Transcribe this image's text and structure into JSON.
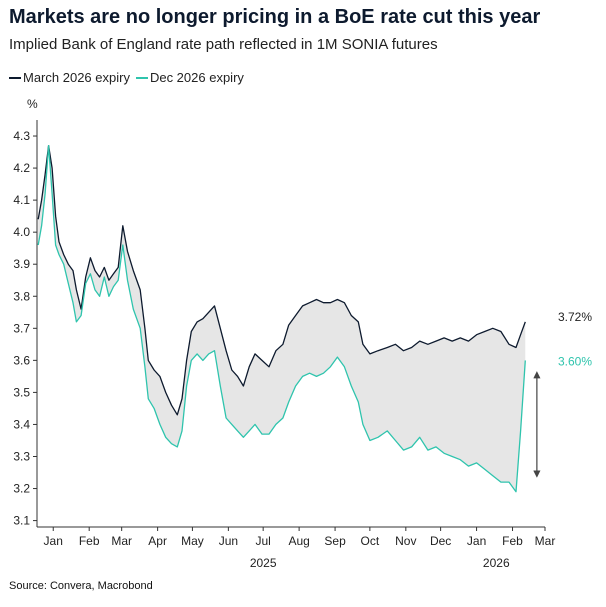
{
  "chart_data": {
    "type": "line",
    "title": "Markets are no longer pricing in a BoE rate cut this year",
    "subtitle": "Implied Bank of England rate path reflected in 1M SONIA futures",
    "ylabel": "%",
    "ylim": [
      3.08,
      4.35
    ],
    "yticks": [
      3.1,
      3.2,
      3.3,
      3.4,
      3.5,
      3.6,
      3.7,
      3.8,
      3.9,
      4.0,
      4.1,
      4.2,
      4.3
    ],
    "xlim": [
      "2025-01-01",
      "2026-03-15"
    ],
    "x_ticks": [
      {
        "label": "Jan",
        "date": "2025-01-15"
      },
      {
        "label": "Feb",
        "date": "2025-02-15"
      },
      {
        "label": "Mar",
        "date": "2025-03-15"
      },
      {
        "label": "Apr",
        "date": "2025-04-15"
      },
      {
        "label": "May",
        "date": "2025-05-15"
      },
      {
        "label": "Jun",
        "date": "2025-06-15"
      },
      {
        "label": "Jul",
        "date": "2025-07-15"
      },
      {
        "label": "Aug",
        "date": "2025-08-15"
      },
      {
        "label": "Sep",
        "date": "2025-09-15"
      },
      {
        "label": "Oct",
        "date": "2025-10-15"
      },
      {
        "label": "Nov",
        "date": "2025-11-15"
      },
      {
        "label": "Dec",
        "date": "2025-12-15"
      },
      {
        "label": "Jan",
        "date": "2026-01-15"
      },
      {
        "label": "Feb",
        "date": "2026-02-15"
      },
      {
        "label": "Mar",
        "date": "2026-03-15"
      }
    ],
    "year_labels": [
      {
        "label": "2025",
        "date": "2025-07-15"
      },
      {
        "label": "2026",
        "date": "2026-02-01"
      }
    ],
    "legend_position": "top-left",
    "grid": false,
    "shaded_gap_between_series": true,
    "series": [
      {
        "name": "March 2026 expiry",
        "color": "#0d1a2e",
        "end_label": "3.72%",
        "points": [
          [
            "2025-01-02",
            4.04
          ],
          [
            "2025-01-05",
            4.1
          ],
          [
            "2025-01-08",
            4.18
          ],
          [
            "2025-01-11",
            4.27
          ],
          [
            "2025-01-14",
            4.2
          ],
          [
            "2025-01-17",
            4.05
          ],
          [
            "2025-01-20",
            3.97
          ],
          [
            "2025-01-24",
            3.93
          ],
          [
            "2025-01-28",
            3.9
          ],
          [
            "2025-02-01",
            3.88
          ],
          [
            "2025-02-04",
            3.82
          ],
          [
            "2025-02-08",
            3.76
          ],
          [
            "2025-02-12",
            3.86
          ],
          [
            "2025-02-16",
            3.92
          ],
          [
            "2025-02-20",
            3.88
          ],
          [
            "2025-02-24",
            3.86
          ],
          [
            "2025-02-28",
            3.89
          ],
          [
            "2025-03-04",
            3.85
          ],
          [
            "2025-03-08",
            3.87
          ],
          [
            "2025-03-12",
            3.89
          ],
          [
            "2025-03-16",
            4.02
          ],
          [
            "2025-03-20",
            3.94
          ],
          [
            "2025-03-25",
            3.88
          ],
          [
            "2025-03-31",
            3.82
          ],
          [
            "2025-04-04",
            3.7
          ],
          [
            "2025-04-07",
            3.6
          ],
          [
            "2025-04-12",
            3.57
          ],
          [
            "2025-04-17",
            3.55
          ],
          [
            "2025-04-22",
            3.5
          ],
          [
            "2025-04-27",
            3.46
          ],
          [
            "2025-05-02",
            3.43
          ],
          [
            "2025-05-06",
            3.48
          ],
          [
            "2025-05-10",
            3.6
          ],
          [
            "2025-05-14",
            3.69
          ],
          [
            "2025-05-19",
            3.72
          ],
          [
            "2025-05-24",
            3.73
          ],
          [
            "2025-05-29",
            3.75
          ],
          [
            "2025-06-03",
            3.77
          ],
          [
            "2025-06-08",
            3.7
          ],
          [
            "2025-06-13",
            3.63
          ],
          [
            "2025-06-18",
            3.57
          ],
          [
            "2025-06-23",
            3.55
          ],
          [
            "2025-06-28",
            3.52
          ],
          [
            "2025-07-03",
            3.58
          ],
          [
            "2025-07-08",
            3.62
          ],
          [
            "2025-07-14",
            3.6
          ],
          [
            "2025-07-20",
            3.58
          ],
          [
            "2025-07-26",
            3.63
          ],
          [
            "2025-08-01",
            3.65
          ],
          [
            "2025-08-06",
            3.71
          ],
          [
            "2025-08-12",
            3.74
          ],
          [
            "2025-08-18",
            3.77
          ],
          [
            "2025-08-24",
            3.78
          ],
          [
            "2025-08-30",
            3.79
          ],
          [
            "2025-09-05",
            3.78
          ],
          [
            "2025-09-11",
            3.78
          ],
          [
            "2025-09-17",
            3.79
          ],
          [
            "2025-09-23",
            3.78
          ],
          [
            "2025-09-29",
            3.74
          ],
          [
            "2025-10-05",
            3.72
          ],
          [
            "2025-10-09",
            3.65
          ],
          [
            "2025-10-15",
            3.62
          ],
          [
            "2025-10-22",
            3.63
          ],
          [
            "2025-10-30",
            3.64
          ],
          [
            "2025-11-06",
            3.65
          ],
          [
            "2025-11-13",
            3.63
          ],
          [
            "2025-11-20",
            3.64
          ],
          [
            "2025-11-27",
            3.66
          ],
          [
            "2025-12-04",
            3.65
          ],
          [
            "2025-12-11",
            3.66
          ],
          [
            "2025-12-18",
            3.67
          ],
          [
            "2025-12-25",
            3.66
          ],
          [
            "2026-01-01",
            3.67
          ],
          [
            "2026-01-08",
            3.66
          ],
          [
            "2026-01-15",
            3.68
          ],
          [
            "2026-01-22",
            3.69
          ],
          [
            "2026-01-29",
            3.7
          ],
          [
            "2026-02-05",
            3.69
          ],
          [
            "2026-02-12",
            3.65
          ],
          [
            "2026-02-18",
            3.64
          ],
          [
            "2026-02-22",
            3.68
          ],
          [
            "2026-02-26",
            3.72
          ]
        ]
      },
      {
        "name": "Dec 2026 expiry",
        "color": "#2fc4ad",
        "end_label": "3.60%",
        "points": [
          [
            "2025-01-02",
            3.96
          ],
          [
            "2025-01-05",
            4.02
          ],
          [
            "2025-01-08",
            4.12
          ],
          [
            "2025-01-11",
            4.27
          ],
          [
            "2025-01-14",
            4.12
          ],
          [
            "2025-01-17",
            3.96
          ],
          [
            "2025-01-20",
            3.93
          ],
          [
            "2025-01-24",
            3.9
          ],
          [
            "2025-01-28",
            3.84
          ],
          [
            "2025-02-01",
            3.78
          ],
          [
            "2025-02-04",
            3.72
          ],
          [
            "2025-02-08",
            3.74
          ],
          [
            "2025-02-12",
            3.84
          ],
          [
            "2025-02-16",
            3.87
          ],
          [
            "2025-02-20",
            3.82
          ],
          [
            "2025-02-24",
            3.8
          ],
          [
            "2025-02-28",
            3.86
          ],
          [
            "2025-03-04",
            3.8
          ],
          [
            "2025-03-08",
            3.83
          ],
          [
            "2025-03-12",
            3.85
          ],
          [
            "2025-03-16",
            3.96
          ],
          [
            "2025-03-20",
            3.85
          ],
          [
            "2025-03-25",
            3.76
          ],
          [
            "2025-03-31",
            3.7
          ],
          [
            "2025-04-04",
            3.58
          ],
          [
            "2025-04-07",
            3.48
          ],
          [
            "2025-04-12",
            3.45
          ],
          [
            "2025-04-17",
            3.4
          ],
          [
            "2025-04-22",
            3.36
          ],
          [
            "2025-04-27",
            3.34
          ],
          [
            "2025-05-02",
            3.33
          ],
          [
            "2025-05-06",
            3.38
          ],
          [
            "2025-05-10",
            3.52
          ],
          [
            "2025-05-14",
            3.6
          ],
          [
            "2025-05-19",
            3.62
          ],
          [
            "2025-05-24",
            3.6
          ],
          [
            "2025-05-29",
            3.62
          ],
          [
            "2025-06-03",
            3.63
          ],
          [
            "2025-06-08",
            3.52
          ],
          [
            "2025-06-13",
            3.42
          ],
          [
            "2025-06-18",
            3.4
          ],
          [
            "2025-06-23",
            3.38
          ],
          [
            "2025-06-28",
            3.36
          ],
          [
            "2025-07-03",
            3.38
          ],
          [
            "2025-07-08",
            3.4
          ],
          [
            "2025-07-14",
            3.37
          ],
          [
            "2025-07-20",
            3.37
          ],
          [
            "2025-07-26",
            3.4
          ],
          [
            "2025-08-01",
            3.42
          ],
          [
            "2025-08-06",
            3.47
          ],
          [
            "2025-08-12",
            3.52
          ],
          [
            "2025-08-18",
            3.55
          ],
          [
            "2025-08-24",
            3.56
          ],
          [
            "2025-08-30",
            3.55
          ],
          [
            "2025-09-05",
            3.56
          ],
          [
            "2025-09-11",
            3.58
          ],
          [
            "2025-09-17",
            3.61
          ],
          [
            "2025-09-23",
            3.58
          ],
          [
            "2025-09-29",
            3.52
          ],
          [
            "2025-10-05",
            3.47
          ],
          [
            "2025-10-09",
            3.4
          ],
          [
            "2025-10-15",
            3.35
          ],
          [
            "2025-10-22",
            3.36
          ],
          [
            "2025-10-30",
            3.38
          ],
          [
            "2025-11-06",
            3.35
          ],
          [
            "2025-11-13",
            3.32
          ],
          [
            "2025-11-20",
            3.33
          ],
          [
            "2025-11-27",
            3.36
          ],
          [
            "2025-12-04",
            3.32
          ],
          [
            "2025-12-11",
            3.33
          ],
          [
            "2025-12-18",
            3.31
          ],
          [
            "2025-12-25",
            3.3
          ],
          [
            "2026-01-01",
            3.29
          ],
          [
            "2026-01-08",
            3.27
          ],
          [
            "2026-01-15",
            3.28
          ],
          [
            "2026-01-22",
            3.26
          ],
          [
            "2026-01-29",
            3.24
          ],
          [
            "2026-02-05",
            3.22
          ],
          [
            "2026-02-12",
            3.22
          ],
          [
            "2026-02-18",
            3.19
          ],
          [
            "2026-02-22",
            3.38
          ],
          [
            "2026-02-26",
            3.6
          ]
        ]
      }
    ],
    "annotations": [
      {
        "type": "double-arrow",
        "date": "2026-03-08",
        "from": 3.245,
        "to": 3.555,
        "color": "#444444"
      }
    ]
  },
  "source": "Source: Convera, Macrobond"
}
